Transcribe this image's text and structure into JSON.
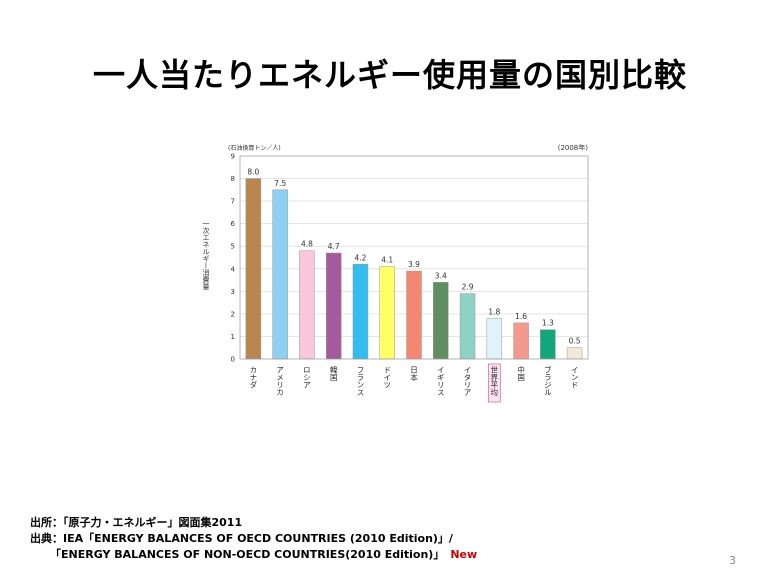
{
  "slide": {
    "title": "一人当たりエネルギー使用量の国別比較",
    "page_number": "3"
  },
  "source": {
    "line1": "出所：「原子力・エネルギー」図面集2011",
    "line2": "出典：IEA「ENERGY BALANCES OF OECD COUNTRIES (2010 Edition)」/",
    "line3": "「ENERGY BALANCES OF NON-OECD COUNTRIES(2010 Edition)」",
    "new_tag": "New"
  },
  "chart_data": {
    "type": "bar",
    "unit_label": "(石油換算トン／人)",
    "year_label": "(2008年)",
    "ylabel": "一次エネルギー消費量",
    "ylim": [
      0,
      9
    ],
    "yticks": [
      0,
      1,
      2,
      3,
      4,
      5,
      6,
      7,
      8,
      9
    ],
    "grid": true,
    "highlighted_category": "世界平均",
    "categories": [
      "カナダ",
      "アメリカ",
      "ロシア",
      "韓国",
      "フランス",
      "ドイツ",
      "日本",
      "イギリス",
      "イタリア",
      "世界平均",
      "中国",
      "ブラジル",
      "インド"
    ],
    "values": [
      8.0,
      7.5,
      4.8,
      4.7,
      4.2,
      4.1,
      3.9,
      3.4,
      2.9,
      1.8,
      1.6,
      1.3,
      0.5
    ],
    "value_labels": [
      "8.0",
      "7.5",
      "4.8",
      "4.7",
      "4.2",
      "4.1",
      "3.9",
      "3.4",
      "2.9",
      "1.8",
      "1.6",
      "1.3",
      "0.5"
    ],
    "colors": [
      "#b8864e",
      "#8dd0f0",
      "#f9c6dc",
      "#a55aa0",
      "#33bdee",
      "#ffff66",
      "#f48772",
      "#5e8f5e",
      "#8ed1c5",
      "#dff3fb",
      "#f49a8c",
      "#10a77a",
      "#f1eadb"
    ]
  }
}
